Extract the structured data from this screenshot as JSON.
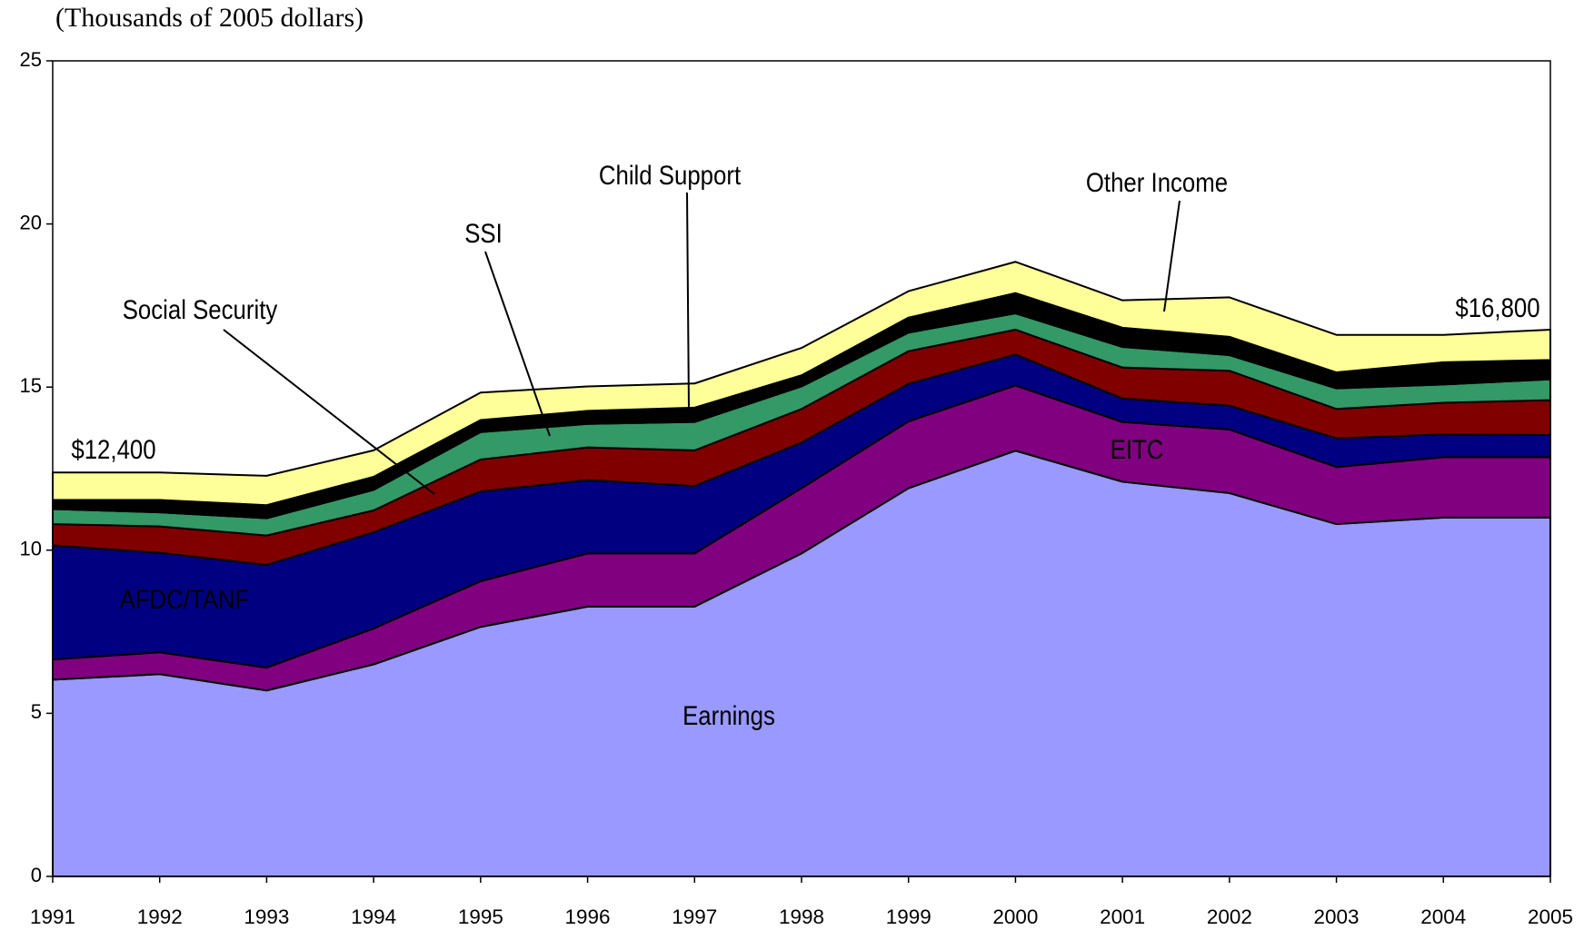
{
  "chart_data": {
    "type": "stacked_area",
    "subtitle": "(Thousands of 2005 dollars)",
    "x": [
      1991,
      1992,
      1993,
      1994,
      1995,
      1996,
      1997,
      1998,
      1999,
      2000,
      2001,
      2002,
      2003,
      2004,
      2005
    ],
    "xlim": [
      1991,
      2005
    ],
    "ylim": [
      0,
      25
    ],
    "yticks": [
      0,
      5,
      10,
      15,
      20,
      25
    ],
    "grid": false,
    "series": [
      {
        "name": "Earnings",
        "color": "#9999ff",
        "values": [
          6.03,
          6.2,
          5.7,
          6.5,
          7.65,
          8.27,
          8.27,
          9.9,
          11.9,
          13.05,
          12.1,
          11.75,
          10.8,
          11.0,
          11.0
        ]
      },
      {
        "name": "EITC",
        "color": "#800080",
        "values": [
          0.62,
          0.67,
          0.7,
          1.1,
          1.4,
          1.63,
          1.63,
          2.0,
          2.05,
          2.0,
          1.83,
          1.95,
          1.75,
          1.85,
          1.85
        ]
      },
      {
        "name": "AFDC/TANF",
        "color": "#000080",
        "values": [
          3.5,
          3.05,
          3.15,
          2.95,
          2.75,
          2.25,
          2.07,
          1.4,
          1.15,
          0.95,
          0.72,
          0.73,
          0.88,
          0.7,
          0.68
        ]
      },
      {
        "name": "Social Security",
        "color": "#800000",
        "values": [
          0.65,
          0.81,
          0.9,
          0.67,
          0.98,
          1.0,
          1.09,
          1.03,
          1.0,
          0.76,
          0.95,
          1.07,
          0.9,
          0.97,
          1.07
        ]
      },
      {
        "name": "SSI",
        "color": "#339966",
        "values": [
          0.46,
          0.43,
          0.53,
          0.63,
          0.84,
          0.72,
          0.87,
          0.69,
          0.57,
          0.5,
          0.63,
          0.48,
          0.63,
          0.56,
          0.64
        ]
      },
      {
        "name": "Child Support",
        "color": "#000000",
        "values": [
          0.28,
          0.38,
          0.4,
          0.4,
          0.37,
          0.4,
          0.44,
          0.34,
          0.46,
          0.62,
          0.59,
          0.56,
          0.49,
          0.68,
          0.59
        ]
      },
      {
        "name": "Other Income",
        "color": "#ffff99",
        "values": [
          0.84,
          0.84,
          0.9,
          0.81,
          0.84,
          0.75,
          0.74,
          0.84,
          0.81,
          0.96,
          0.84,
          1.21,
          1.15,
          0.84,
          0.93
        ]
      }
    ],
    "annotations": [
      {
        "text": "$12,400"
      },
      {
        "text": "$16,800"
      }
    ]
  }
}
